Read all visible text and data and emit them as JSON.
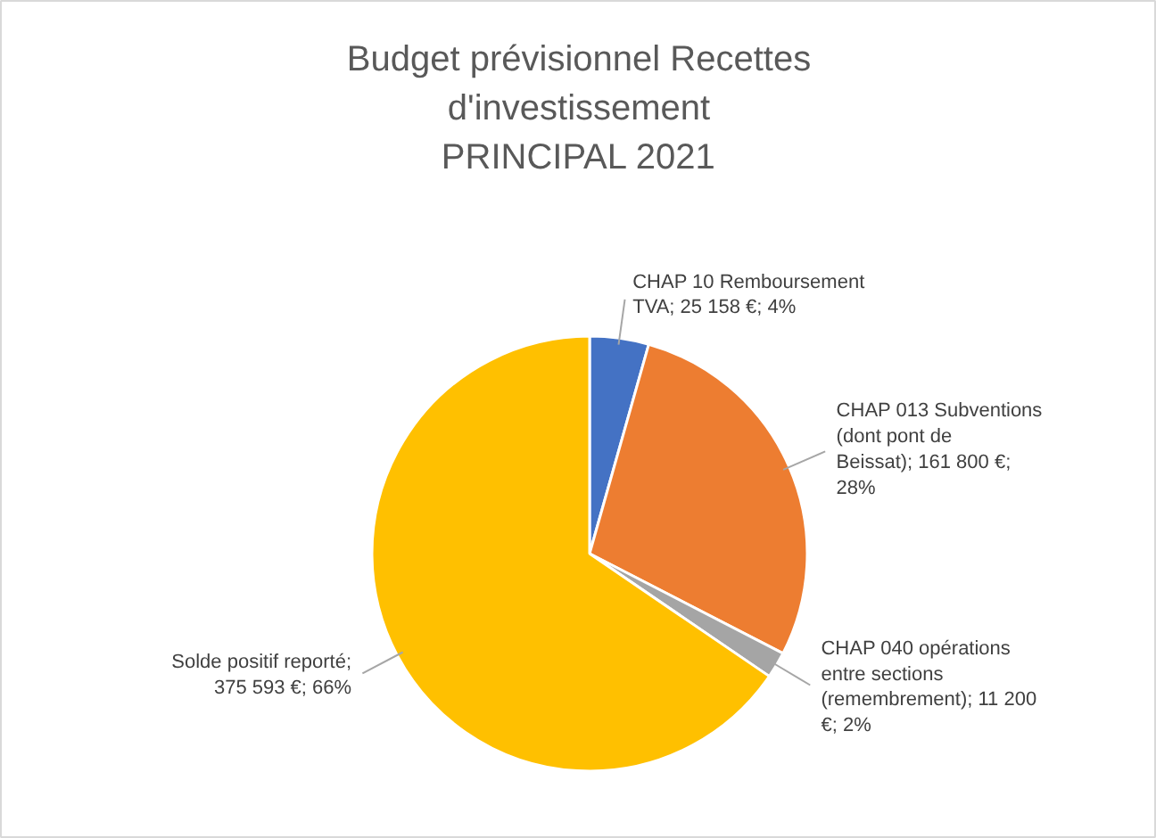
{
  "chart_data": {
    "type": "pie",
    "title": "Budget prévisionnel Recettes\nd'investissement\nPRINCIPAL 2021",
    "categories": [
      "CHAP 10 Remboursement TVA; 25 158 €; 4%",
      "CHAP 013 Subventions (dont pont de Beissat); 161 800 €; 28%",
      "CHAP 040 opérations entre sections (remembrement); 11 200 €; 2%",
      "Solde positif reporté; 375 593 €; 66%"
    ],
    "values": [
      25158,
      161800,
      11200,
      375593
    ],
    "colors": [
      "#4472c4",
      "#ed7d31",
      "#a5a5a5",
      "#ffc000"
    ]
  }
}
